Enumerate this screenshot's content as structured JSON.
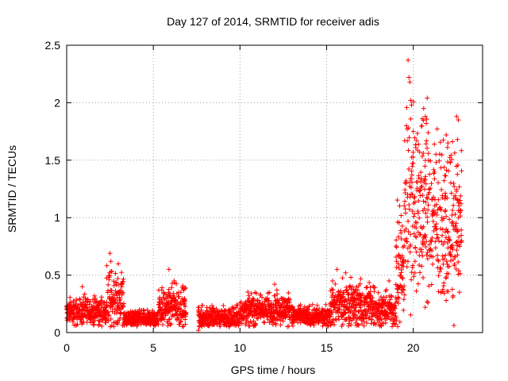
{
  "chart_data": {
    "type": "scatter",
    "title": "Day 127 of 2014, SRMTID for receiver adis",
    "xlabel": "GPS time / hours",
    "ylabel": "SRMTID / TECUs",
    "xlim": [
      0,
      24
    ],
    "ylim": [
      0,
      2.5
    ],
    "xticks": [
      0,
      5,
      10,
      15,
      20
    ],
    "yticks": [
      0,
      0.5,
      1,
      1.5,
      2,
      2.5
    ],
    "grid": true,
    "marker": "+",
    "series_color": "#ff0000",
    "series": [
      {
        "name": "SRMTID",
        "segments": [
          {
            "start": 0.0,
            "end": 2.3,
            "base": 0.18,
            "spread": 0.08
          },
          {
            "start": 2.3,
            "end": 3.3,
            "base": 0.28,
            "spread": 0.18
          },
          {
            "start": 3.3,
            "end": 5.3,
            "base": 0.12,
            "spread": 0.05
          },
          {
            "start": 5.3,
            "end": 6.9,
            "base": 0.22,
            "spread": 0.12
          },
          {
            "start": 7.6,
            "end": 10.0,
            "base": 0.13,
            "spread": 0.07
          },
          {
            "start": 10.0,
            "end": 13.0,
            "base": 0.2,
            "spread": 0.09
          },
          {
            "start": 13.0,
            "end": 15.2,
            "base": 0.14,
            "spread": 0.06
          },
          {
            "start": 15.2,
            "end": 17.8,
            "base": 0.24,
            "spread": 0.14
          },
          {
            "start": 17.8,
            "end": 19.0,
            "base": 0.2,
            "spread": 0.1
          },
          {
            "start": 19.0,
            "end": 19.5,
            "base": 0.55,
            "spread": 0.4
          },
          {
            "start": 19.5,
            "end": 21.0,
            "base": 1.15,
            "spread": 0.55
          },
          {
            "start": 21.0,
            "end": 22.8,
            "base": 0.95,
            "spread": 0.45
          }
        ],
        "peaks": [
          {
            "x": 0.9,
            "y": 0.4
          },
          {
            "x": 2.5,
            "y": 0.69
          },
          {
            "x": 2.55,
            "y": 0.62
          },
          {
            "x": 2.6,
            "y": 0.53
          },
          {
            "x": 2.95,
            "y": 0.47
          },
          {
            "x": 5.9,
            "y": 0.55
          },
          {
            "x": 6.2,
            "y": 0.45
          },
          {
            "x": 7.6,
            "y": 0.02
          },
          {
            "x": 7.65,
            "y": 0.05
          },
          {
            "x": 12.0,
            "y": 0.42
          },
          {
            "x": 15.6,
            "y": 0.55
          },
          {
            "x": 16.1,
            "y": 0.52
          },
          {
            "x": 16.4,
            "y": 0.48
          },
          {
            "x": 18.6,
            "y": 0.45
          },
          {
            "x": 19.7,
            "y": 2.37
          },
          {
            "x": 19.75,
            "y": 2.22
          },
          {
            "x": 19.8,
            "y": 2.18
          },
          {
            "x": 19.85,
            "y": 2.02
          },
          {
            "x": 19.9,
            "y": 1.98
          },
          {
            "x": 19.6,
            "y": 1.8
          },
          {
            "x": 20.0,
            "y": 1.75
          },
          {
            "x": 20.6,
            "y": 1.95
          },
          {
            "x": 20.7,
            "y": 1.88
          },
          {
            "x": 20.75,
            "y": 1.82
          },
          {
            "x": 21.9,
            "y": 1.72
          },
          {
            "x": 22.0,
            "y": 1.65
          },
          {
            "x": 22.5,
            "y": 1.88
          },
          {
            "x": 22.6,
            "y": 1.85
          },
          {
            "x": 22.55,
            "y": 1.68
          },
          {
            "x": 20.8,
            "y": 0.27
          },
          {
            "x": 20.85,
            "y": 0.26
          },
          {
            "x": 21.9,
            "y": 0.28
          },
          {
            "x": 22.3,
            "y": 0.32
          },
          {
            "x": 19.3,
            "y": 0.4
          },
          {
            "x": 19.4,
            "y": 0.62
          }
        ]
      }
    ]
  }
}
